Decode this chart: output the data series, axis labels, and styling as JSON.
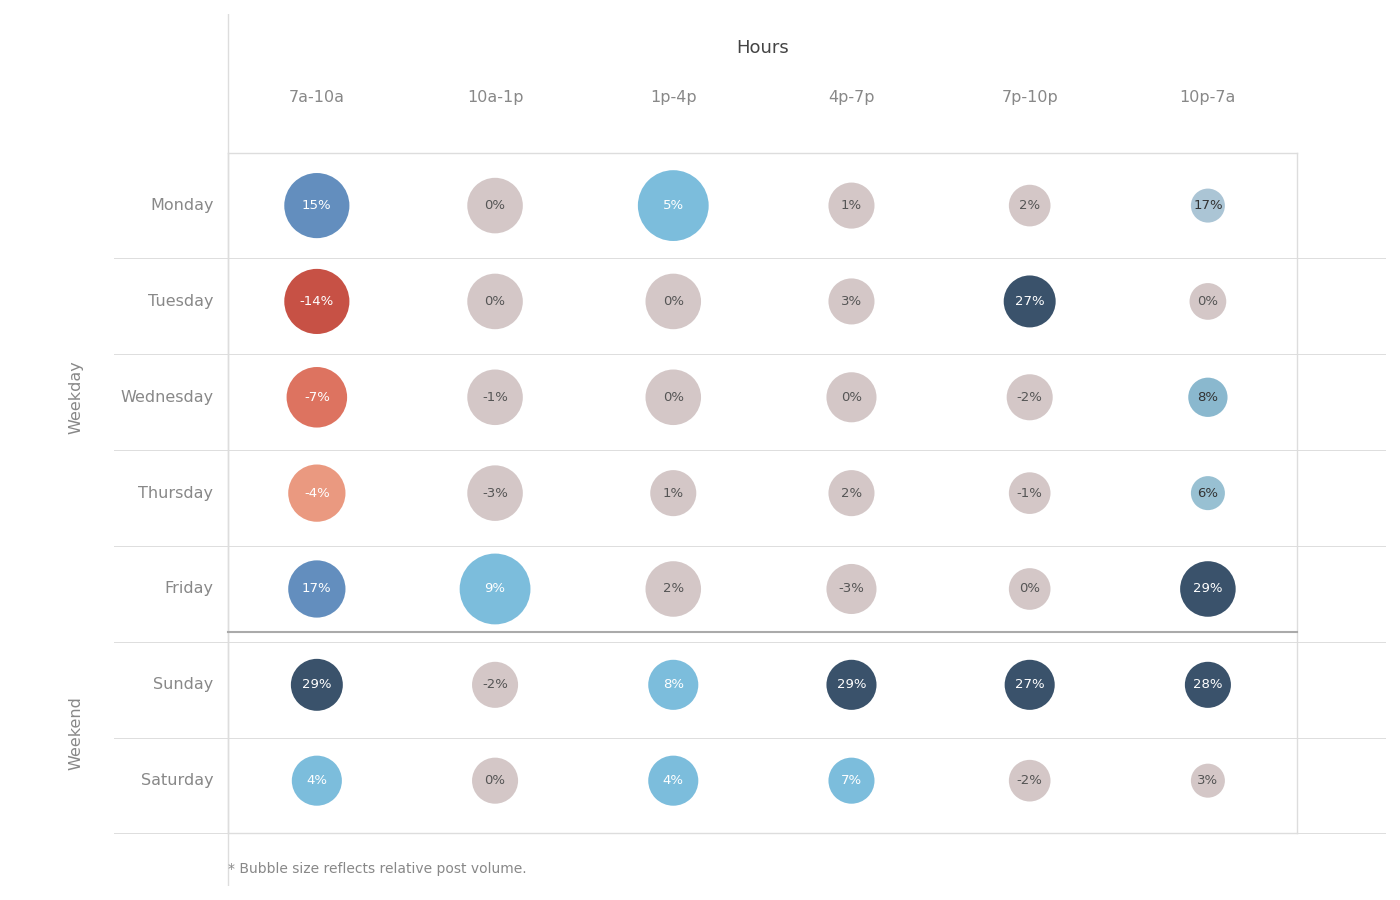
{
  "title": "Hours",
  "footnote": "* Bubble size reflects relative post volume.",
  "columns": [
    "7a-10a",
    "10a-1p",
    "1p-4p",
    "4p-7p",
    "7p-10p",
    "10p-7a"
  ],
  "rows": [
    "Monday",
    "Tuesday",
    "Wednesday",
    "Thursday",
    "Friday",
    "Sunday",
    "Saturday"
  ],
  "weekday_label": "Weekday",
  "weekend_label": "Weekend",
  "weekday_rows": [
    "Monday",
    "Tuesday",
    "Wednesday",
    "Thursday",
    "Friday"
  ],
  "weekend_rows": [
    "Sunday",
    "Saturday"
  ],
  "values": {
    "Monday": [
      15,
      0,
      5,
      1,
      2,
      17
    ],
    "Tuesday": [
      -14,
      0,
      0,
      3,
      27,
      0
    ],
    "Wednesday": [
      -7,
      -1,
      0,
      0,
      -2,
      8
    ],
    "Thursday": [
      -4,
      -3,
      1,
      2,
      -1,
      6
    ],
    "Friday": [
      17,
      9,
      2,
      -3,
      0,
      29
    ],
    "Sunday": [
      29,
      -2,
      8,
      29,
      27,
      28
    ],
    "Saturday": [
      4,
      0,
      4,
      7,
      -2,
      3
    ]
  },
  "bubble_sizes": {
    "Monday": [
      2200,
      1600,
      2600,
      1100,
      900,
      600
    ],
    "Tuesday": [
      2200,
      1600,
      1600,
      1100,
      1400,
      700
    ],
    "Wednesday": [
      1900,
      1600,
      1600,
      1300,
      1100,
      800
    ],
    "Thursday": [
      1700,
      1600,
      1100,
      1100,
      900,
      600
    ],
    "Friday": [
      1700,
      2600,
      1600,
      1300,
      900,
      1600
    ],
    "Sunday": [
      1400,
      1100,
      1300,
      1300,
      1300,
      1100
    ],
    "Saturday": [
      1300,
      1100,
      1300,
      1100,
      900,
      600
    ]
  },
  "colors": {
    "Monday": [
      "#4d7fb5",
      "#cec0c0",
      "#6ab4d8",
      "#cec0c0",
      "#cec0c0",
      "#a0bdd0"
    ],
    "Tuesday": [
      "#c0392b",
      "#cec0c0",
      "#cec0c0",
      "#cec0c0",
      "#1e3a56",
      "#cec0c0"
    ],
    "Wednesday": [
      "#d9604a",
      "#cec0c0",
      "#cec0c0",
      "#cec0c0",
      "#cec0c0",
      "#7aafc8"
    ],
    "Thursday": [
      "#e88b6e",
      "#cec0c0",
      "#cec0c0",
      "#cec0c0",
      "#cec0c0",
      "#8ab8cc"
    ],
    "Friday": [
      "#4d7fb5",
      "#6ab4d8",
      "#cec0c0",
      "#cec0c0",
      "#cec0c0",
      "#1e3a56"
    ],
    "Sunday": [
      "#1e3a56",
      "#cec0c0",
      "#6ab4d8",
      "#1e3a56",
      "#1e3a56",
      "#1e3a56"
    ],
    "Saturday": [
      "#6ab4d8",
      "#cec0c0",
      "#6ab4d8",
      "#6ab4d8",
      "#cec0c0",
      "#cec0c0"
    ]
  },
  "text_colors": {
    "Monday": [
      "white",
      "#555",
      "white",
      "#555",
      "#555",
      "#333"
    ],
    "Tuesday": [
      "white",
      "#555",
      "#555",
      "#555",
      "white",
      "#555"
    ],
    "Wednesday": [
      "white",
      "#555",
      "#555",
      "#555",
      "#555",
      "#333"
    ],
    "Thursday": [
      "white",
      "#555",
      "#555",
      "#555",
      "#555",
      "#333"
    ],
    "Friday": [
      "white",
      "white",
      "#555",
      "#555",
      "#555",
      "white"
    ],
    "Sunday": [
      "white",
      "#555",
      "white",
      "white",
      "white",
      "white"
    ],
    "Saturday": [
      "white",
      "#555",
      "white",
      "white",
      "#555",
      "#555"
    ]
  },
  "bg_color": "#ffffff",
  "label_color": "#888888",
  "title_color": "#444444",
  "grid_color": "#dddddd",
  "separator_color": "#aaaaaa"
}
